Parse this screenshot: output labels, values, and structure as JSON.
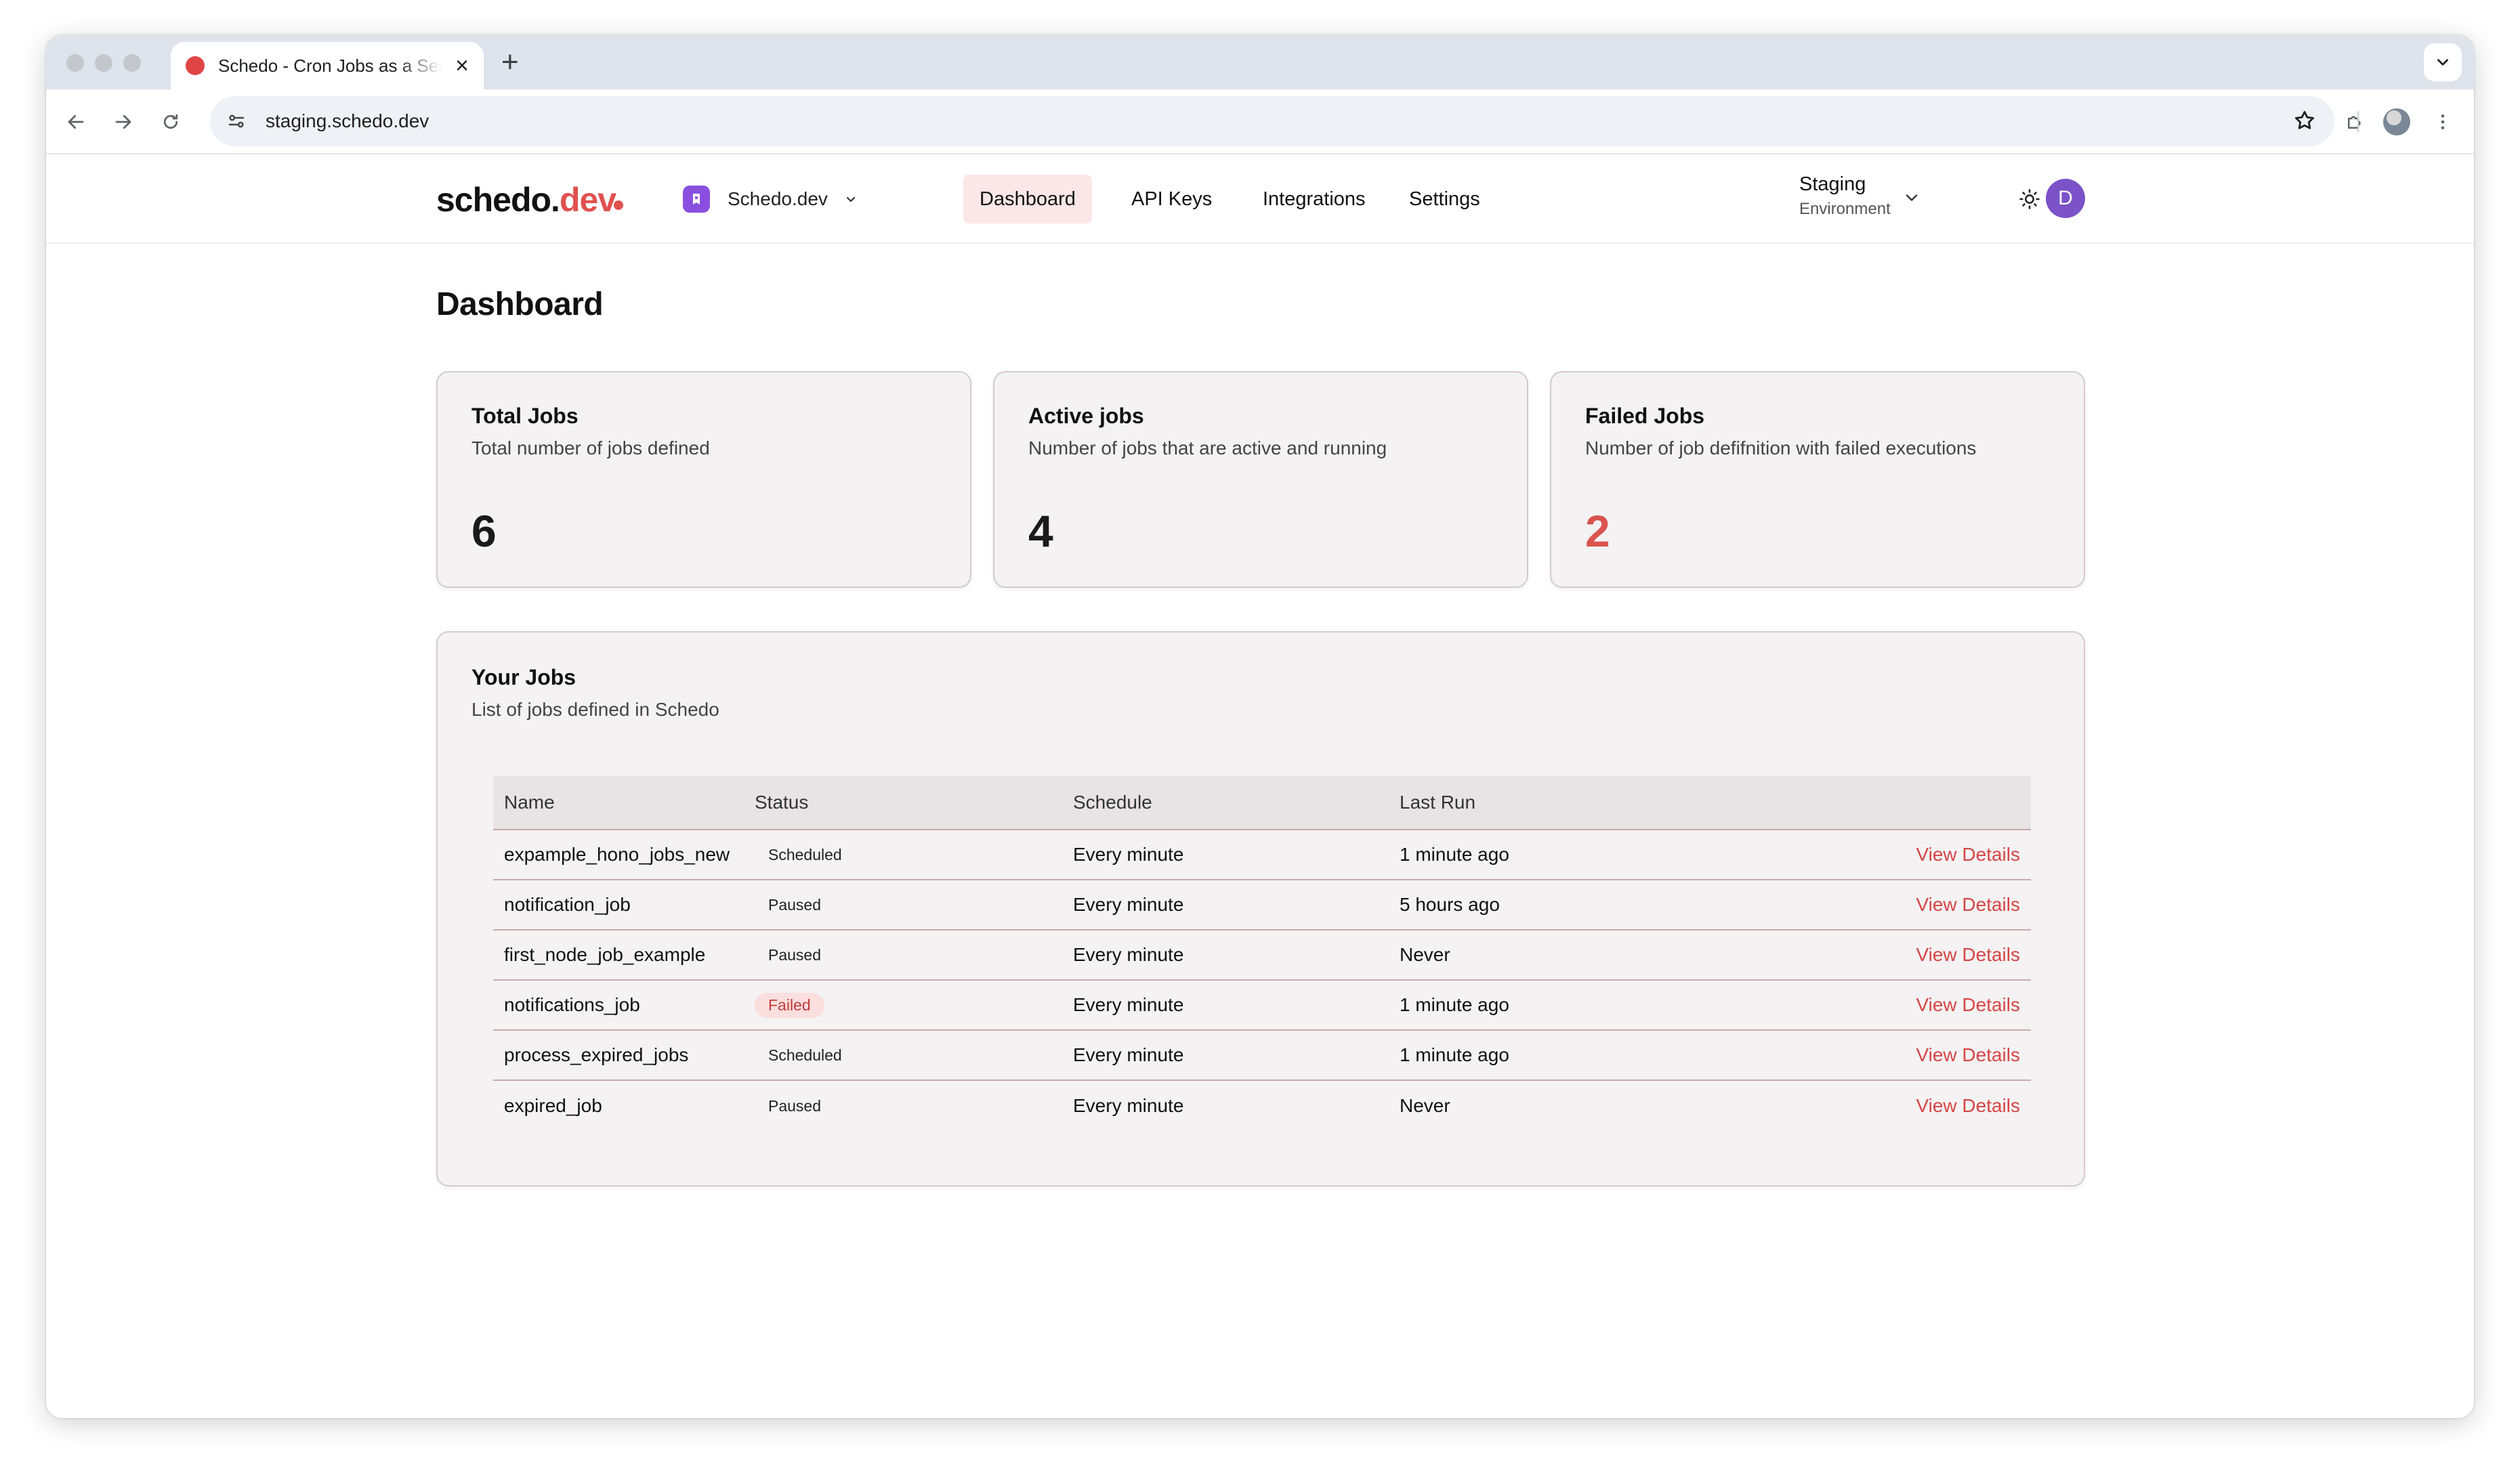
{
  "browser": {
    "tab_title": "Schedo - Cron Jobs as a Service",
    "url": "staging.schedo.dev"
  },
  "header": {
    "logo_main": "schedo.",
    "logo_accent": "dev",
    "workspace": "Schedo.dev",
    "nav": [
      {
        "label": "Dashboard",
        "active": true
      },
      {
        "label": "API Keys",
        "active": false
      },
      {
        "label": "Integrations",
        "active": false
      },
      {
        "label": "Settings",
        "active": false
      }
    ],
    "environment": {
      "name": "Staging",
      "label": "Environment"
    },
    "avatar_initial": "D"
  },
  "page": {
    "title": "Dashboard"
  },
  "stats": [
    {
      "title": "Total Jobs",
      "description": "Total number of jobs defined",
      "value": "6"
    },
    {
      "title": "Active jobs",
      "description": "Number of jobs that are active and running",
      "value": "4"
    },
    {
      "title": "Failed Jobs",
      "description": "Number of job defifnition with failed executions",
      "value": "2"
    }
  ],
  "jobs": {
    "title": "Your Jobs",
    "description": "List of jobs defined in Schedo",
    "columns": [
      "Name",
      "Status",
      "Schedule",
      "Last Run",
      ""
    ],
    "rows": [
      {
        "name": "expample_hono_jobs_new",
        "status": "Scheduled",
        "schedule": "Every minute",
        "last_run": "1 minute ago",
        "action": "View Details"
      },
      {
        "name": "notification_job",
        "status": "Paused",
        "schedule": "Every minute",
        "last_run": "5 hours ago",
        "action": "View Details"
      },
      {
        "name": "first_node_job_example",
        "status": "Paused",
        "schedule": "Every minute",
        "last_run": "Never",
        "action": "View Details"
      },
      {
        "name": "notifications_job",
        "status": "Failed",
        "schedule": "Every minute",
        "last_run": "1 minute ago",
        "action": "View Details"
      },
      {
        "name": "process_expired_jobs",
        "status": "Scheduled",
        "schedule": "Every minute",
        "last_run": "1 minute ago",
        "action": "View Details"
      },
      {
        "name": "expired_job",
        "status": "Paused",
        "schedule": "Every minute",
        "last_run": "Never",
        "action": "View Details"
      }
    ]
  },
  "colors": {
    "accent": "#e0514f",
    "danger": "#d9534f",
    "nav_active_bg": "#fbe7e7",
    "avatar": "#7b52c8",
    "workspace_icon": "#8a4fe0"
  },
  "icons": [
    "back-icon",
    "forward-icon",
    "reload-icon",
    "site-settings-icon",
    "bookmark-star-icon",
    "extensions-icon",
    "menu-dots-icon",
    "chevron-down-icon",
    "sun-icon"
  ]
}
